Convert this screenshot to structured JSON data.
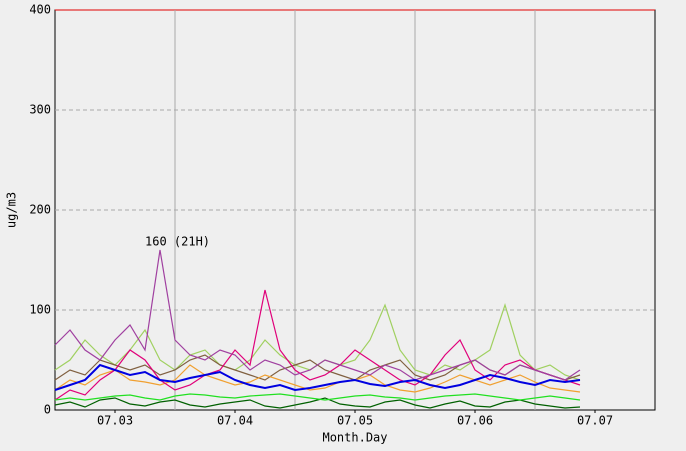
{
  "chart_data": {
    "type": "line",
    "xlabel": "Month.Day",
    "ylabel": "ug/m3",
    "annotation": {
      "text": "160 (21H)",
      "x": 3.375,
      "y": 160
    },
    "xlim": [
      2.5,
      7.5
    ],
    "xticks": [
      {
        "value": 3,
        "label": "07.03"
      },
      {
        "value": 4,
        "label": "07.04"
      },
      {
        "value": 5,
        "label": "07.05"
      },
      {
        "value": 6,
        "label": "07.06"
      },
      {
        "value": 7,
        "label": "07.07"
      }
    ],
    "xgrid": [
      3.5,
      4.5,
      5.5,
      6.5
    ],
    "ylim": [
      0,
      400
    ],
    "yticks": [
      0,
      100,
      200,
      300,
      400
    ],
    "grid": true,
    "x": [
      2.5,
      2.625,
      2.75,
      2.875,
      3,
      3.125,
      3.25,
      3.375,
      3.5,
      3.625,
      3.75,
      3.875,
      4,
      4.125,
      4.25,
      4.375,
      4.5,
      4.625,
      4.75,
      4.875,
      5,
      5.125,
      5.25,
      5.375,
      5.5,
      5.625,
      5.75,
      5.875,
      6,
      6.125,
      6.25,
      6.375,
      6.5,
      6.625,
      6.75,
      6.875
    ],
    "series": [
      {
        "color": "#a0d060",
        "values": [
          40,
          50,
          70,
          55,
          45,
          60,
          80,
          50,
          40,
          55,
          60,
          45,
          40,
          50,
          70,
          55,
          45,
          40,
          50,
          45,
          50,
          70,
          105,
          60,
          40,
          35,
          45,
          40,
          50,
          60,
          105,
          55,
          40,
          45,
          35,
          30
        ]
      },
      {
        "color": "#806040",
        "values": [
          30,
          40,
          35,
          50,
          45,
          40,
          45,
          35,
          40,
          50,
          55,
          45,
          40,
          35,
          30,
          40,
          45,
          50,
          40,
          35,
          30,
          40,
          45,
          50,
          35,
          30,
          35,
          45,
          50,
          40,
          35,
          45,
          40,
          35,
          30,
          35
        ]
      },
      {
        "color": "#f0a030",
        "values": [
          20,
          30,
          25,
          35,
          40,
          30,
          28,
          25,
          30,
          45,
          35,
          30,
          25,
          28,
          35,
          30,
          25,
          20,
          22,
          28,
          30,
          35,
          25,
          20,
          18,
          22,
          28,
          35,
          30,
          25,
          30,
          35,
          28,
          22,
          20,
          18
        ]
      },
      {
        "color": "#e0007a",
        "values": [
          10,
          20,
          15,
          30,
          40,
          60,
          50,
          30,
          20,
          25,
          35,
          40,
          60,
          45,
          120,
          60,
          40,
          30,
          35,
          45,
          60,
          50,
          40,
          30,
          25,
          35,
          55,
          70,
          40,
          30,
          45,
          50,
          40,
          35,
          30,
          25
        ]
      },
      {
        "color": "#a040a0",
        "values": [
          65,
          80,
          60,
          50,
          70,
          85,
          60,
          160,
          70,
          55,
          50,
          60,
          55,
          40,
          50,
          45,
          35,
          40,
          50,
          45,
          40,
          35,
          45,
          40,
          30,
          35,
          40,
          45,
          50,
          40,
          35,
          45,
          40,
          35,
          30,
          40
        ]
      },
      {
        "color": "#006000",
        "values": [
          5,
          8,
          3,
          10,
          12,
          6,
          4,
          8,
          10,
          5,
          3,
          6,
          8,
          10,
          4,
          2,
          5,
          8,
          12,
          6,
          4,
          3,
          8,
          10,
          5,
          2,
          6,
          9,
          4,
          3,
          8,
          10,
          6,
          4,
          2,
          3
        ]
      },
      {
        "color": "#20e020",
        "values": [
          10,
          12,
          10,
          12,
          14,
          15,
          12,
          10,
          14,
          16,
          15,
          13,
          12,
          14,
          15,
          16,
          14,
          12,
          10,
          12,
          14,
          15,
          13,
          12,
          10,
          12,
          14,
          15,
          16,
          14,
          12,
          10,
          12,
          14,
          12,
          10
        ]
      },
      {
        "color": "#0000e0",
        "values": [
          20,
          25,
          30,
          45,
          40,
          35,
          38,
          30,
          28,
          32,
          35,
          38,
          30,
          25,
          22,
          25,
          20,
          22,
          25,
          28,
          30,
          26,
          24,
          28,
          30,
          25,
          22,
          25,
          30,
          35,
          32,
          28,
          25,
          30,
          28,
          30
        ]
      }
    ]
  }
}
